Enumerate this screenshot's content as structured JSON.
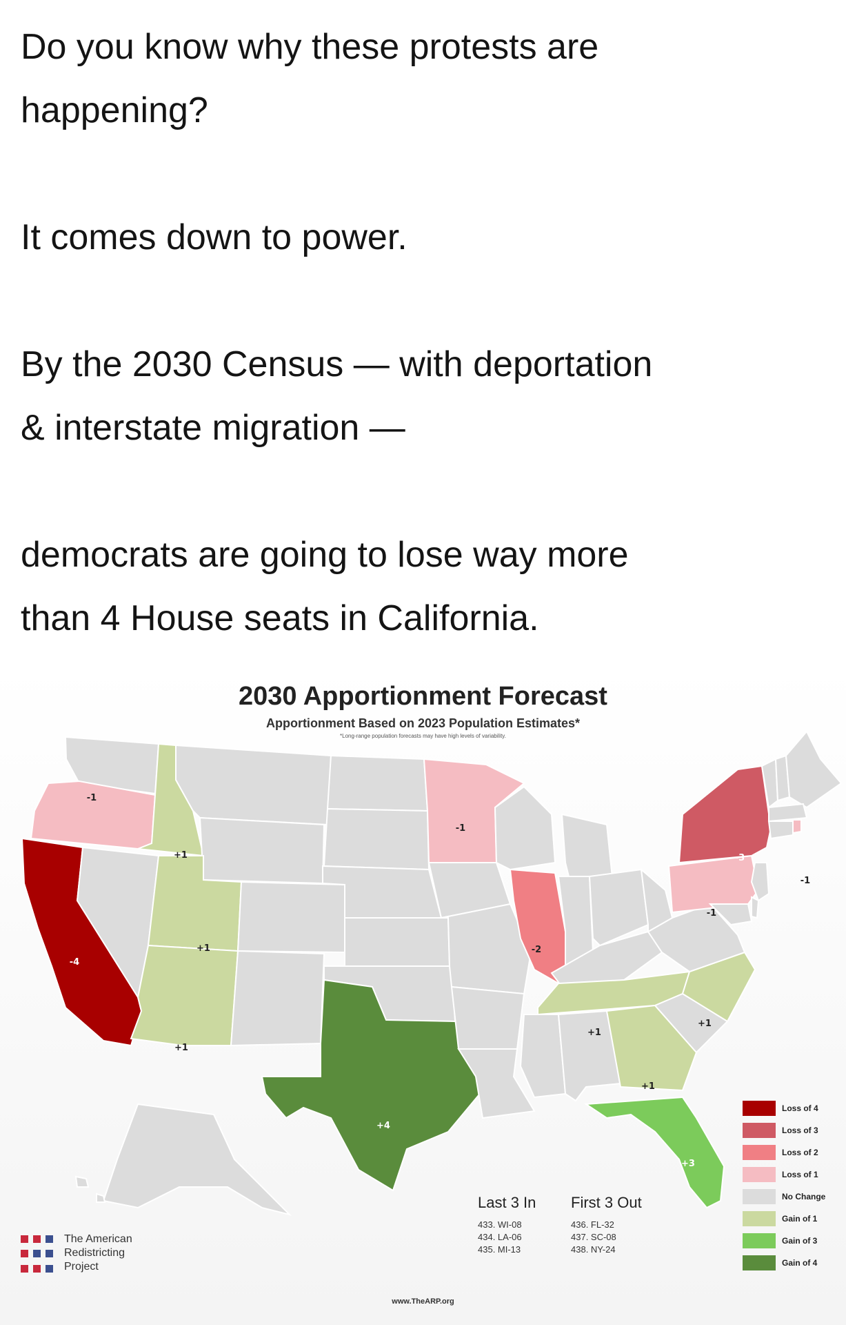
{
  "post": {
    "line1": "Do you know why these protests are",
    "line2": "happening?",
    "line3": "It comes down to power.",
    "line4": "By the 2030 Census — with deportation",
    "line5": "& interstate migration —",
    "line6": "democrats are going to lose way more",
    "line7": "than 4 House seats in California."
  },
  "map": {
    "title": "2030 Apportionment Forecast",
    "subtitle": "Apportionment Based on 2023 Population Estimates*",
    "footnote": "*Long-range population forecasts may have high levels of variability.",
    "url": "www.TheARP.org",
    "colors": {
      "no_change": "#dcdcdc",
      "loss_4": "#a80000",
      "loss_3": "#cf5a64",
      "loss_2": "#f07f84",
      "loss_1": "#f5bcc2",
      "gain_1": "#cbd9a0",
      "gain_3": "#7ccb5b",
      "gain_4": "#5a8c3c"
    },
    "states": [
      {
        "code": "CA",
        "label": "-4",
        "change": -4
      },
      {
        "code": "OR",
        "label": "-1",
        "change": -1
      },
      {
        "code": "ID",
        "label": "+1",
        "change": 1
      },
      {
        "code": "UT",
        "label": "+1",
        "change": 1
      },
      {
        "code": "AZ",
        "label": "+1",
        "change": 1
      },
      {
        "code": "TX",
        "label": "+4",
        "change": 4
      },
      {
        "code": "MN",
        "label": "-1",
        "change": -1
      },
      {
        "code": "IL",
        "label": "-2",
        "change": -2
      },
      {
        "code": "TN",
        "label": "+1",
        "change": 1
      },
      {
        "code": "GA",
        "label": "+1",
        "change": 1
      },
      {
        "code": "FL",
        "label": "+3",
        "change": 3
      },
      {
        "code": "NC",
        "label": "+1",
        "change": 1
      },
      {
        "code": "PA",
        "label": "-1",
        "change": -1
      },
      {
        "code": "NY",
        "label": "-3",
        "change": -3
      },
      {
        "code": "RI",
        "label": "-1",
        "change": -1
      }
    ],
    "legend": [
      {
        "label": "Loss of 4",
        "color": "#a80000"
      },
      {
        "label": "Loss of 3",
        "color": "#cf5a64"
      },
      {
        "label": "Loss of 2",
        "color": "#f07f84"
      },
      {
        "label": "Loss of 1",
        "color": "#f5bcc2"
      },
      {
        "label": "No Change",
        "color": "#dcdcdc"
      },
      {
        "label": "Gain of 1",
        "color": "#cbd9a0"
      },
      {
        "label": "Gain of 3",
        "color": "#7ccb5b"
      },
      {
        "label": "Gain of 4",
        "color": "#5a8c3c"
      }
    ],
    "last_in": {
      "heading": "Last 3 In",
      "items": [
        "433. WI-08",
        "434. LA-06",
        "435. MI-13"
      ]
    },
    "first_out": {
      "heading": "First 3 Out",
      "items": [
        "436. FL-32",
        "437. SC-08",
        "438. NY-24"
      ]
    },
    "logo": {
      "line1": "The American",
      "line2": "Redistricting",
      "line3": "Project",
      "colors": [
        "#c8283c",
        "#3b4f8f"
      ]
    }
  }
}
